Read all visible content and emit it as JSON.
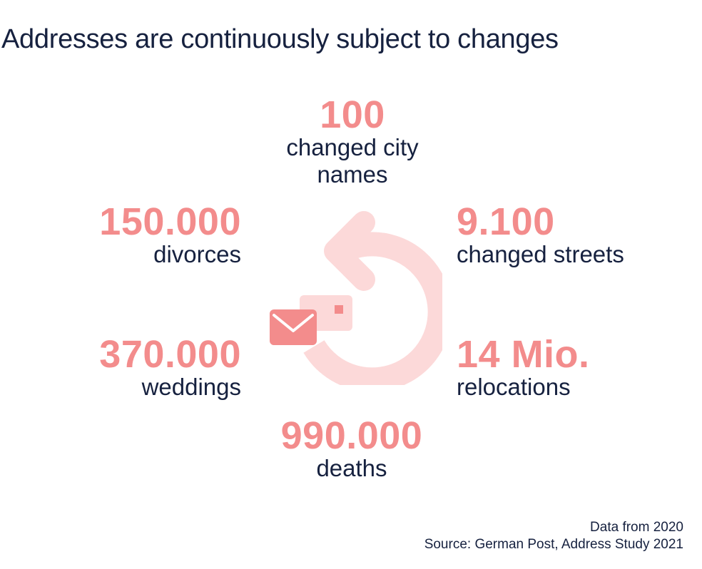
{
  "title": "Addresses are continuously subject to changes",
  "stats": {
    "city_names": {
      "value": "100",
      "label": "changed city names"
    },
    "divorces": {
      "value": "150.000",
      "label": "divorces"
    },
    "streets": {
      "value": "9.100",
      "label": "changed streets"
    },
    "weddings": {
      "value": "370.000",
      "label": "weddings"
    },
    "relocations": {
      "value": "14 Mio.",
      "label": "relocations"
    },
    "deaths": {
      "value": "990.000",
      "label": "deaths"
    }
  },
  "footer": {
    "note": "Data from 2020",
    "source": "Source: German Post, Address Study 2021"
  },
  "icons": {
    "center": "mail-redirect-icon"
  },
  "colors": {
    "accent": "#f38c8c",
    "accent_light": "#fcd9d9",
    "text": "#16213f"
  }
}
